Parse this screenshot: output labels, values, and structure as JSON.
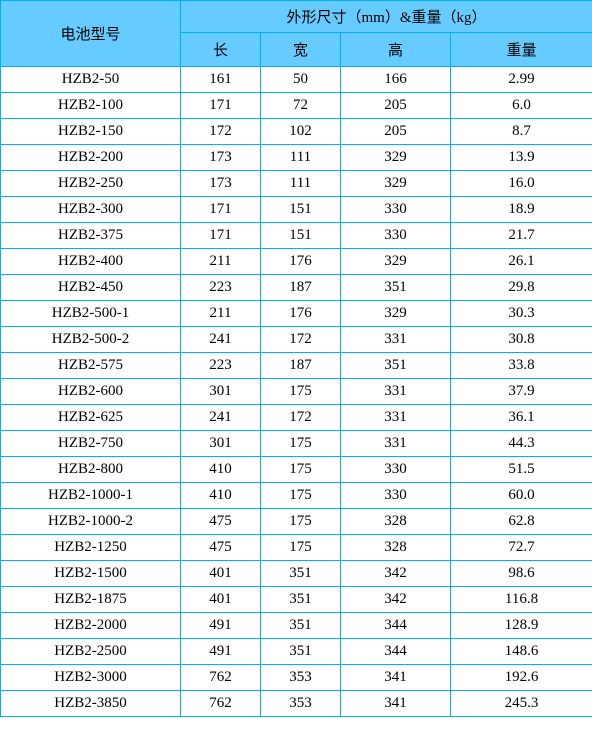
{
  "table": {
    "header": {
      "model": "电池型号",
      "dims_title": "外形尺寸（mm）&重量（kg）",
      "length": "长",
      "width": "宽",
      "height": "高",
      "weight": "重量"
    },
    "colors": {
      "header_bg": "#66ccff",
      "border": "#00b0f0",
      "background": "#ffffff"
    },
    "rows": [
      {
        "model": "HZB2-50",
        "l": "161",
        "w": "50",
        "h": "166",
        "wt": "2.99"
      },
      {
        "model": "HZB2-100",
        "l": "171",
        "w": "72",
        "h": "205",
        "wt": "6.0"
      },
      {
        "model": "HZB2-150",
        "l": "172",
        "w": "102",
        "h": "205",
        "wt": "8.7"
      },
      {
        "model": "HZB2-200",
        "l": "173",
        "w": "111",
        "h": "329",
        "wt": "13.9"
      },
      {
        "model": "HZB2-250",
        "l": "173",
        "w": "111",
        "h": "329",
        "wt": "16.0"
      },
      {
        "model": "HZB2-300",
        "l": "171",
        "w": "151",
        "h": "330",
        "wt": "18.9"
      },
      {
        "model": "HZB2-375",
        "l": "171",
        "w": "151",
        "h": "330",
        "wt": "21.7"
      },
      {
        "model": "HZB2-400",
        "l": "211",
        "w": "176",
        "h": "329",
        "wt": "26.1"
      },
      {
        "model": "HZB2-450",
        "l": "223",
        "w": "187",
        "h": "351",
        "wt": "29.8"
      },
      {
        "model": "HZB2-500-1",
        "l": "211",
        "w": "176",
        "h": "329",
        "wt": "30.3"
      },
      {
        "model": "HZB2-500-2",
        "l": "241",
        "w": "172",
        "h": "331",
        "wt": "30.8"
      },
      {
        "model": "HZB2-575",
        "l": "223",
        "w": "187",
        "h": "351",
        "wt": "33.8"
      },
      {
        "model": "HZB2-600",
        "l": "301",
        "w": "175",
        "h": "331",
        "wt": "37.9"
      },
      {
        "model": "HZB2-625",
        "l": "241",
        "w": "172",
        "h": "331",
        "wt": "36.1"
      },
      {
        "model": "HZB2-750",
        "l": "301",
        "w": "175",
        "h": "331",
        "wt": "44.3"
      },
      {
        "model": "HZB2-800",
        "l": "410",
        "w": "175",
        "h": "330",
        "wt": "51.5"
      },
      {
        "model": "HZB2-1000-1",
        "l": "410",
        "w": "175",
        "h": "330",
        "wt": "60.0"
      },
      {
        "model": "HZB2-1000-2",
        "l": "475",
        "w": "175",
        "h": "328",
        "wt": "62.8"
      },
      {
        "model": "HZB2-1250",
        "l": "475",
        "w": "175",
        "h": "328",
        "wt": "72.7"
      },
      {
        "model": "HZB2-1500",
        "l": "401",
        "w": "351",
        "h": "342",
        "wt": "98.6"
      },
      {
        "model": "HZB2-1875",
        "l": "401",
        "w": "351",
        "h": "342",
        "wt": "116.8"
      },
      {
        "model": "HZB2-2000",
        "l": "491",
        "w": "351",
        "h": "344",
        "wt": "128.9"
      },
      {
        "model": "HZB2-2500",
        "l": "491",
        "w": "351",
        "h": "344",
        "wt": "148.6"
      },
      {
        "model": "HZB2-3000",
        "l": "762",
        "w": "353",
        "h": "341",
        "wt": "192.6"
      },
      {
        "model": "HZB2-3850",
        "l": "762",
        "w": "353",
        "h": "341",
        "wt": "245.3"
      }
    ]
  }
}
